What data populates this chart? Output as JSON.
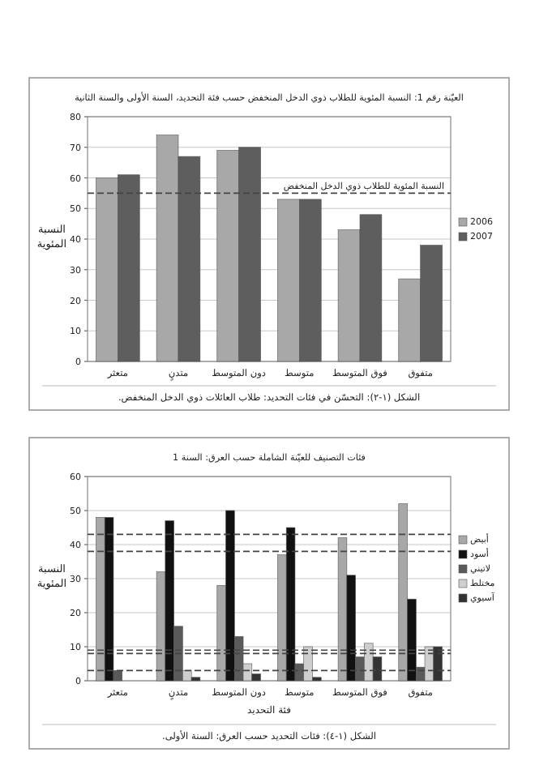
{
  "chart_data": [
    {
      "type": "bar",
      "title": "العيّنة رقم 1: النسبة المئوية للطلاب ذوي الدخل المنخفض حسب فئة التحديد، السنة الأولى والسنة الثانية",
      "ylabel": "النسبة المئوية",
      "categories": [
        "متعثر",
        "متدنٍ",
        "دون المتوسط",
        "متوسط",
        "فوق المتوسط",
        "متفوق"
      ],
      "series": [
        {
          "name": "2006",
          "color": "#a8a8a8",
          "values": [
            60,
            74,
            69,
            53,
            43,
            27
          ]
        },
        {
          "name": "2007",
          "color": "#5e5e5e",
          "values": [
            61,
            67,
            70,
            53,
            48,
            38
          ]
        }
      ],
      "ylim": [
        0,
        80
      ],
      "yticks": [
        0,
        10,
        20,
        30,
        40,
        50,
        60,
        70,
        80
      ],
      "grid": "y",
      "legend": "right",
      "ref_lines": [
        {
          "axis": "y",
          "value": 55,
          "label": "النسبة المئوية للطلاب ذوي الدخل المنخفض",
          "line_style": "dashed",
          "color": "#444444"
        }
      ],
      "annotations": [
        "الشكل (١-٢): التحسّن في فئات التحديد: طلاب العائلات ذوي الدخل المنخفض."
      ]
    },
    {
      "type": "bar",
      "title": "فئات التصنيف للعيّنة الشاملة حسب العرق: السنة 1",
      "ylabel": "النسبة المئوية",
      "xlabel": "فئة التحديد",
      "categories": [
        "متعثر",
        "متدنٍ",
        "دون المتوسط",
        "متوسط",
        "فوق المتوسط",
        "متفوق"
      ],
      "series": [
        {
          "name": "أبيض",
          "color": "#a8a8a8",
          "values": [
            48,
            32,
            28,
            37,
            42,
            52
          ]
        },
        {
          "name": "أسود",
          "color": "#111111",
          "values": [
            48,
            47,
            50,
            45,
            31,
            24
          ]
        },
        {
          "name": "لاتيني",
          "color": "#5a5a5a",
          "values": [
            3,
            16,
            13,
            5,
            7,
            4
          ]
        },
        {
          "name": "مختلط",
          "color": "#cfcfcf",
          "values": [
            0,
            3,
            5,
            10,
            11,
            10
          ]
        },
        {
          "name": "آسيوي",
          "color": "#333333",
          "values": [
            0,
            1,
            2,
            1,
            7,
            10
          ]
        }
      ],
      "ylim": [
        0,
        60
      ],
      "yticks": [
        0,
        10,
        20,
        30,
        40,
        50,
        60
      ],
      "grid": "y",
      "legend": "right",
      "ref_lines": [
        {
          "axis": "y",
          "value": 43,
          "line_style": "dashed",
          "color": "#444444"
        },
        {
          "axis": "y",
          "value": 38,
          "line_style": "dashed",
          "color": "#444444"
        },
        {
          "axis": "y",
          "value": 9,
          "line_style": "dashed",
          "color": "#444444"
        },
        {
          "axis": "y",
          "value": 8,
          "line_style": "dashed",
          "color": "#444444"
        },
        {
          "axis": "y",
          "value": 3,
          "line_style": "dashed",
          "color": "#444444"
        }
      ],
      "annotations": [
        "الشكل (١-٤): فئات التحديد حسب العرق: السنة الأولى."
      ]
    }
  ]
}
